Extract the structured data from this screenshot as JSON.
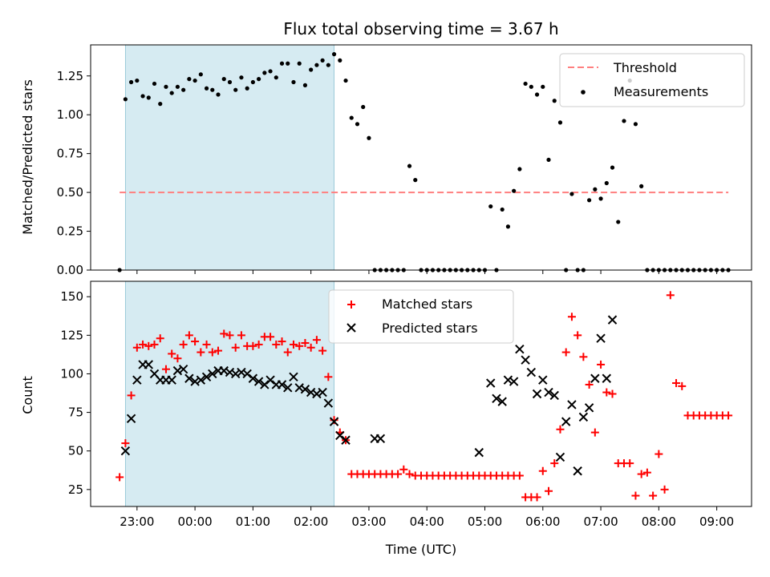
{
  "chart_data": [
    {
      "type": "scatter",
      "title": "Flux total observing time = 3.67 h",
      "ylabel": "Matched/Predicted stars",
      "xlabel": "",
      "ylim": [
        0,
        1.45
      ],
      "yticks": [
        "0.00",
        "0.25",
        "0.50",
        "0.75",
        "1.00",
        "1.25"
      ],
      "ytick_values": [
        0,
        0.25,
        0.5,
        0.75,
        1.0,
        1.25
      ],
      "shaded_span": {
        "start": "22:48",
        "end": "02:24",
        "color": "#add8e6"
      },
      "threshold": {
        "name": "Threshold",
        "value": 0.5,
        "start": "22:42",
        "end": "09:12",
        "color": "#ff7f7f"
      },
      "legend": {
        "position": "top-right",
        "entries": [
          "Threshold",
          "Measurements"
        ]
      },
      "series": [
        {
          "name": "Measurements",
          "color": "#000000",
          "marker": "dot",
          "x": [
            "22:42",
            "22:48",
            "22:54",
            "23:00",
            "23:06",
            "23:12",
            "23:18",
            "23:24",
            "23:30",
            "23:36",
            "23:42",
            "23:48",
            "23:54",
            "00:00",
            "00:06",
            "00:12",
            "00:18",
            "00:24",
            "00:30",
            "00:36",
            "00:42",
            "00:48",
            "00:54",
            "01:00",
            "01:06",
            "01:12",
            "01:18",
            "01:24",
            "01:30",
            "01:36",
            "01:42",
            "01:48",
            "01:54",
            "02:00",
            "02:06",
            "02:12",
            "02:18",
            "02:24",
            "02:30",
            "02:36",
            "02:42",
            "02:48",
            "02:54",
            "03:00",
            "03:06",
            "03:12",
            "03:18",
            "03:24",
            "03:30",
            "03:36",
            "03:42",
            "03:48",
            "03:54",
            "04:00",
            "04:06",
            "04:12",
            "04:18",
            "04:24",
            "04:30",
            "04:36",
            "04:42",
            "04:48",
            "04:54",
            "05:00",
            "05:06",
            "05:12",
            "05:18",
            "05:24",
            "05:30",
            "05:36",
            "05:42",
            "05:48",
            "05:54",
            "06:00",
            "06:06",
            "06:12",
            "06:18",
            "06:24",
            "06:30",
            "06:36",
            "06:42",
            "06:48",
            "06:54",
            "07:00",
            "07:06",
            "07:12",
            "07:18",
            "07:24",
            "07:30",
            "07:36",
            "07:42",
            "07:48",
            "07:54",
            "08:00",
            "08:06",
            "08:12",
            "08:18",
            "08:24",
            "08:30",
            "08:36",
            "08:42",
            "08:48",
            "08:54",
            "09:00",
            "09:06",
            "09:12"
          ],
          "y": [
            0.0,
            1.1,
            1.21,
            1.22,
            1.12,
            1.11,
            1.2,
            1.07,
            1.18,
            1.14,
            1.18,
            1.16,
            1.23,
            1.22,
            1.26,
            1.17,
            1.16,
            1.13,
            1.23,
            1.21,
            1.16,
            1.24,
            1.17,
            1.21,
            1.23,
            1.27,
            1.28,
            1.24,
            1.33,
            1.33,
            1.21,
            1.33,
            1.19,
            1.29,
            1.32,
            1.35,
            1.32,
            1.39,
            1.35,
            1.22,
            0.98,
            0.94,
            1.05,
            0.85,
            0.0,
            0.0,
            0.0,
            0.0,
            0.0,
            0.0,
            0.67,
            0.58,
            0.0,
            0.0,
            0.0,
            0.0,
            0.0,
            0.0,
            0.0,
            0.0,
            0.0,
            0.0,
            0.0,
            0.0,
            0.41,
            0.0,
            0.39,
            0.28,
            0.51,
            0.65,
            1.2,
            1.18,
            1.13,
            1.18,
            0.71,
            1.09,
            0.95,
            0.0,
            0.49,
            0.0,
            0.0,
            0.45,
            0.52,
            0.46,
            0.56,
            0.66,
            0.31,
            0.96,
            1.22,
            0.94,
            0.54,
            0.0,
            0.0,
            0.0,
            0.0,
            0.0,
            0.0,
            0.0,
            0.0,
            0.0,
            0.0,
            0.0,
            0.0,
            0.0,
            0.0,
            0.0
          ]
        }
      ]
    },
    {
      "type": "scatter",
      "title": "",
      "ylabel": "Count",
      "xlabel": "Time (UTC)",
      "ylim": [
        14,
        160
      ],
      "yticks": [
        "25",
        "50",
        "75",
        "100",
        "125",
        "150"
      ],
      "ytick_values": [
        25,
        50,
        75,
        100,
        125,
        150
      ],
      "xlim": [
        "22:12",
        "09:36"
      ],
      "xticks": [
        "23:00",
        "00:00",
        "01:00",
        "02:00",
        "03:00",
        "04:00",
        "05:00",
        "06:00",
        "07:00",
        "08:00",
        "09:00"
      ],
      "shaded_span": {
        "start": "22:48",
        "end": "02:24",
        "color": "#add8e6"
      },
      "legend": {
        "position": "top-center",
        "entries": [
          "Matched stars",
          "Predicted stars"
        ]
      },
      "series": [
        {
          "name": "Matched stars",
          "color": "#ff0000",
          "marker": "plus",
          "x": [
            "22:42",
            "22:48",
            "22:54",
            "23:00",
            "23:06",
            "23:12",
            "23:18",
            "23:24",
            "23:30",
            "23:36",
            "23:42",
            "23:48",
            "23:54",
            "00:00",
            "00:06",
            "00:12",
            "00:18",
            "00:24",
            "00:30",
            "00:36",
            "00:42",
            "00:48",
            "00:54",
            "01:00",
            "01:06",
            "01:12",
            "01:18",
            "01:24",
            "01:30",
            "01:36",
            "01:42",
            "01:48",
            "01:54",
            "02:00",
            "02:06",
            "02:12",
            "02:18",
            "02:24",
            "02:30",
            "02:36",
            "02:42",
            "02:48",
            "02:54",
            "03:00",
            "03:06",
            "03:12",
            "03:18",
            "03:24",
            "03:30",
            "03:36",
            "03:42",
            "03:48",
            "03:54",
            "04:00",
            "04:06",
            "04:12",
            "04:18",
            "04:24",
            "04:30",
            "04:36",
            "04:42",
            "04:48",
            "04:54",
            "05:00",
            "05:06",
            "05:12",
            "05:18",
            "05:24",
            "05:30",
            "05:36",
            "05:42",
            "05:48",
            "05:54",
            "06:00",
            "06:06",
            "06:12",
            "06:18",
            "06:24",
            "06:30",
            "06:36",
            "06:42",
            "06:48",
            "06:54",
            "07:00",
            "07:06",
            "07:12",
            "07:18",
            "07:24",
            "07:30",
            "07:36",
            "07:42",
            "07:48",
            "07:54",
            "08:00",
            "08:06",
            "08:12",
            "08:18",
            "08:24",
            "08:30",
            "08:36",
            "08:42",
            "08:48",
            "08:54",
            "09:00",
            "09:06",
            "09:12"
          ],
          "y": [
            33,
            55,
            86,
            117,
            119,
            118,
            119,
            123,
            103,
            113,
            110,
            119,
            125,
            121,
            114,
            119,
            114,
            115,
            126,
            125,
            117,
            125,
            118,
            118,
            119,
            124,
            124,
            119,
            121,
            114,
            119,
            118,
            120,
            117,
            122,
            115,
            98,
            70,
            62,
            57,
            35,
            35,
            35,
            35,
            35,
            35,
            35,
            35,
            35,
            38,
            35,
            34,
            34,
            34,
            34,
            34,
            34,
            34,
            34,
            34,
            34,
            34,
            34,
            34,
            34,
            34,
            34,
            34,
            34,
            34,
            20,
            20,
            20,
            37,
            24,
            42,
            64,
            114,
            137,
            125,
            111,
            93,
            62,
            106,
            88,
            87,
            42,
            42,
            42,
            21,
            35,
            36,
            21,
            48,
            25,
            151,
            94,
            92,
            73,
            73,
            73,
            73,
            73,
            73,
            73,
            73
          ]
        },
        {
          "name": "Predicted stars",
          "color": "#000000",
          "marker": "cross",
          "x": [
            "22:48",
            "22:54",
            "23:00",
            "23:06",
            "23:12",
            "23:18",
            "23:24",
            "23:30",
            "23:36",
            "23:42",
            "23:48",
            "23:54",
            "00:00",
            "00:06",
            "00:12",
            "00:18",
            "00:24",
            "00:30",
            "00:36",
            "00:42",
            "00:48",
            "00:54",
            "01:00",
            "01:06",
            "01:12",
            "01:18",
            "01:24",
            "01:30",
            "01:36",
            "01:42",
            "01:48",
            "01:54",
            "02:00",
            "02:06",
            "02:12",
            "02:18",
            "02:24",
            "02:30",
            "02:36",
            "03:06",
            "03:12",
            "04:54",
            "05:06",
            "05:12",
            "05:18",
            "05:24",
            "05:30",
            "05:36",
            "05:42",
            "05:48",
            "05:54",
            "06:00",
            "06:06",
            "06:12",
            "06:18",
            "06:24",
            "06:30",
            "06:36",
            "06:42",
            "06:48",
            "06:54",
            "07:00",
            "07:06",
            "07:12"
          ],
          "y": [
            50,
            71,
            96,
            106,
            106,
            100,
            96,
            96,
            96,
            102,
            103,
            97,
            95,
            96,
            98,
            100,
            102,
            102,
            101,
            100,
            101,
            100,
            97,
            95,
            93,
            96,
            93,
            93,
            91,
            98,
            91,
            90,
            88,
            87,
            88,
            81,
            69,
            60,
            57,
            58,
            58,
            49,
            94,
            84,
            82,
            96,
            95,
            116,
            109,
            101,
            87,
            96,
            88,
            86,
            46,
            69,
            80,
            37,
            72,
            78,
            97,
            123,
            97,
            135
          ]
        }
      ]
    }
  ]
}
